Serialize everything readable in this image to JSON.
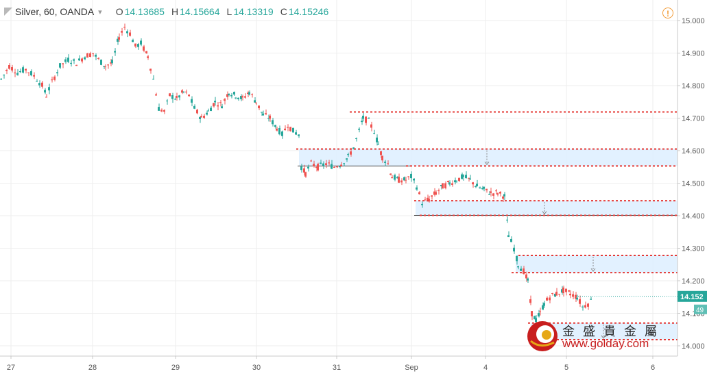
{
  "header": {
    "symbol": "Silver, 60, OANDA",
    "chevron": "▾",
    "open_key": "O",
    "open_val": "14.13685",
    "high_key": "H",
    "high_val": "14.15664",
    "low_key": "L",
    "low_val": "14.13319",
    "close_key": "C",
    "close_val": "14.15246"
  },
  "alert_icon": "exclamation-circle-icon",
  "watermark": {
    "chinese": "金盛貴金屬",
    "url": "www.golday.com"
  },
  "colors": {
    "up": "#26a69a",
    "down": "#ef5350",
    "zone": "#ddeeff",
    "level": "#e53935",
    "grid": "#eeeeee"
  },
  "chart_data": {
    "type": "candlestick",
    "y_axis": {
      "ticks": [
        "15.000",
        "14.900",
        "14.800",
        "14.700",
        "14.600",
        "14.500",
        "14.400",
        "14.300",
        "14.200",
        "14.100",
        "14.000"
      ],
      "ylim": [
        14.0,
        15.0
      ]
    },
    "x_axis": {
      "labels": [
        "27",
        "28",
        "29",
        "30",
        "31",
        "Sep",
        "4",
        "5",
        "6"
      ]
    },
    "price_label": "14.152",
    "countdown_label": "49",
    "levels": [
      {
        "value": 14.719,
        "label": "14.719"
      },
      {
        "value": 14.605,
        "label": "14.605"
      },
      {
        "value": 14.553,
        "label": "14.553"
      },
      {
        "value": 14.446,
        "label": "14.446"
      },
      {
        "value": 14.401,
        "label": "14.401"
      },
      {
        "value": 14.278,
        "label": "14.278"
      },
      {
        "value": 14.225,
        "label": "14.225"
      },
      {
        "value": 14.07,
        "label": "14.070"
      },
      {
        "value": 14.019,
        "label": "14.019"
      }
    ],
    "zones": [
      {
        "top": 14.605,
        "bottom": 14.553
      },
      {
        "top": 14.446,
        "bottom": 14.401
      },
      {
        "top": 14.278,
        "bottom": 14.225
      },
      {
        "top": 14.07,
        "bottom": 14.019
      }
    ],
    "price_path": [
      [
        0,
        14.82
      ],
      [
        12,
        14.86
      ],
      [
        24,
        14.84
      ],
      [
        36,
        14.85
      ],
      [
        48,
        14.83
      ],
      [
        60,
        14.8
      ],
      [
        66,
        14.77
      ],
      [
        74,
        14.81
      ],
      [
        86,
        14.86
      ],
      [
        98,
        14.88
      ],
      [
        110,
        14.87
      ],
      [
        122,
        14.89
      ],
      [
        134,
        14.9
      ],
      [
        142,
        14.88
      ],
      [
        152,
        14.86
      ],
      [
        162,
        14.87
      ],
      [
        172,
        14.95
      ],
      [
        180,
        14.98
      ],
      [
        188,
        14.96
      ],
      [
        196,
        14.92
      ],
      [
        204,
        14.93
      ],
      [
        214,
        14.89
      ],
      [
        222,
        14.82
      ],
      [
        230,
        14.73
      ],
      [
        238,
        14.72
      ],
      [
        246,
        14.77
      ],
      [
        256,
        14.76
      ],
      [
        266,
        14.78
      ],
      [
        274,
        14.77
      ],
      [
        282,
        14.73
      ],
      [
        292,
        14.7
      ],
      [
        302,
        14.72
      ],
      [
        312,
        14.75
      ],
      [
        322,
        14.74
      ],
      [
        332,
        14.78
      ],
      [
        342,
        14.77
      ],
      [
        352,
        14.76
      ],
      [
        362,
        14.78
      ],
      [
        372,
        14.75
      ],
      [
        382,
        14.71
      ],
      [
        392,
        14.7
      ],
      [
        402,
        14.67
      ],
      [
        410,
        14.65
      ],
      [
        418,
        14.68
      ],
      [
        426,
        14.66
      ],
      [
        434,
        14.65
      ],
      [
        438,
        14.55
      ],
      [
        444,
        14.53
      ],
      [
        452,
        14.56
      ],
      [
        462,
        14.55
      ],
      [
        474,
        14.56
      ],
      [
        486,
        14.55
      ],
      [
        496,
        14.56
      ],
      [
        506,
        14.58
      ],
      [
        514,
        14.61
      ],
      [
        522,
        14.66
      ],
      [
        528,
        14.7
      ],
      [
        536,
        14.69
      ],
      [
        544,
        14.66
      ],
      [
        550,
        14.62
      ],
      [
        556,
        14.58
      ],
      [
        564,
        14.56
      ],
      [
        570,
        14.52
      ],
      [
        580,
        14.51
      ],
      [
        590,
        14.51
      ],
      [
        598,
        14.52
      ],
      [
        606,
        14.49
      ],
      [
        614,
        14.44
      ],
      [
        624,
        14.45
      ],
      [
        634,
        14.47
      ],
      [
        644,
        14.49
      ],
      [
        654,
        14.5
      ],
      [
        664,
        14.51
      ],
      [
        674,
        14.52
      ],
      [
        684,
        14.51
      ],
      [
        694,
        14.49
      ],
      [
        704,
        14.48
      ],
      [
        714,
        14.47
      ],
      [
        724,
        14.47
      ],
      [
        734,
        14.46
      ],
      [
        740,
        14.34
      ],
      [
        748,
        14.3
      ],
      [
        754,
        14.25
      ],
      [
        762,
        14.23
      ],
      [
        768,
        14.2
      ],
      [
        774,
        14.1
      ],
      [
        780,
        14.08
      ],
      [
        786,
        14.1
      ],
      [
        792,
        14.13
      ],
      [
        800,
        14.15
      ],
      [
        810,
        14.16
      ],
      [
        820,
        14.17
      ],
      [
        830,
        14.16
      ],
      [
        840,
        14.15
      ],
      [
        848,
        14.12
      ],
      [
        856,
        14.13
      ],
      [
        864,
        14.15
      ]
    ]
  }
}
